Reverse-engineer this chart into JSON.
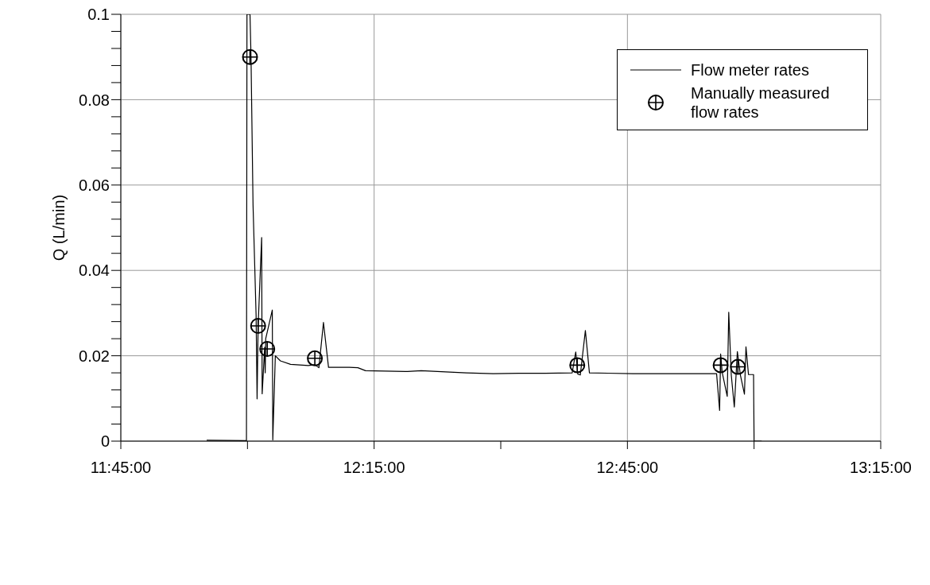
{
  "chart_data": {
    "type": "line",
    "ylabel": "Q (L/min)",
    "xlim": [
      11.75,
      13.25
    ],
    "xticks": [
      {
        "value": 11.75,
        "label": "11:45:00"
      },
      {
        "value": 12.0,
        "label": null
      },
      {
        "value": 12.25,
        "label": "12:15:00"
      },
      {
        "value": 12.5,
        "label": null
      },
      {
        "value": 12.75,
        "label": "12:45:00"
      },
      {
        "value": 13.0,
        "label": null
      },
      {
        "value": 13.25,
        "label": "13:15:00"
      }
    ],
    "ylim": [
      0,
      0.1
    ],
    "yticks": [
      0,
      {
        "value": 0.004,
        "label": null
      },
      {
        "value": 0.008,
        "label": null
      },
      {
        "value": 0.012,
        "label": null
      },
      {
        "value": 0.016,
        "label": null
      },
      0.02,
      {
        "value": 0.024,
        "label": null
      },
      {
        "value": 0.028,
        "label": null
      },
      {
        "value": 0.032,
        "label": null
      },
      {
        "value": 0.036,
        "label": null
      },
      0.04,
      {
        "value": 0.044,
        "label": null
      },
      {
        "value": 0.048,
        "label": null
      },
      {
        "value": 0.052,
        "label": null
      },
      {
        "value": 0.056,
        "label": null
      },
      0.06,
      {
        "value": 0.064,
        "label": null
      },
      {
        "value": 0.068,
        "label": null
      },
      {
        "value": 0.072,
        "label": null
      },
      {
        "value": 0.076,
        "label": null
      },
      0.08,
      {
        "value": 0.084,
        "label": null
      },
      {
        "value": 0.088,
        "label": null
      },
      {
        "value": 0.092,
        "label": null
      },
      {
        "value": 0.096,
        "label": null
      },
      0.1
    ],
    "grid": true,
    "legend": "top right",
    "series": [
      {
        "name": "Flow meter rates",
        "color": "#000000",
        "line_style": "solid",
        "marker": "none",
        "x": [
          11.9195,
          11.998,
          11.999,
          12.005,
          12.007,
          12.011,
          12.017,
          12.019,
          12.021,
          12.028,
          12.029,
          12.034,
          12.035,
          12.036,
          12.049,
          12.05,
          12.055,
          12.065,
          12.085,
          12.12,
          12.133,
          12.141,
          12.15,
          12.16,
          12.201,
          12.218,
          12.233,
          12.316,
          12.343,
          12.375,
          12.432,
          12.485,
          12.536,
          12.588,
          12.641,
          12.648,
          12.652,
          12.657,
          12.667,
          12.675,
          12.761,
          12.861,
          12.926,
          12.932,
          12.934,
          12.937,
          12.947,
          12.95,
          12.955,
          12.961,
          12.967,
          12.973,
          12.981,
          12.984,
          12.989,
          12.999,
          13.0,
          13.015
        ],
        "values": [
          0.0002,
          0.0001,
          0.1,
          0.1,
          0.09,
          0.0553,
          0.0296,
          0.0099,
          0.0268,
          0.0477,
          0.0111,
          0.022,
          0.016,
          0.024,
          0.0307,
          0.0003,
          0.02,
          0.0188,
          0.018,
          0.0177,
          0.0179,
          0.0172,
          0.0278,
          0.0173,
          0.0173,
          0.0172,
          0.0165,
          0.0163,
          0.0165,
          0.0163,
          0.016,
          0.0158,
          0.0159,
          0.0159,
          0.016,
          0.0209,
          0.0157,
          0.0155,
          0.0259,
          0.016,
          0.0158,
          0.0158,
          0.0158,
          0.0072,
          0.0204,
          0.0162,
          0.0105,
          0.0302,
          0.0155,
          0.008,
          0.021,
          0.0155,
          0.011,
          0.0221,
          0.0156,
          0.0156,
          0,
          0
        ]
      },
      {
        "name": "Manually measured flow rates",
        "type": "scatter",
        "color": "#000000",
        "marker": "circle",
        "x": [
          12.005,
          12.021,
          12.039,
          12.133,
          12.651,
          12.934,
          12.968
        ],
        "values": [
          0.09,
          0.027,
          0.0216,
          0.0194,
          0.0178,
          0.0178,
          0.0174
        ]
      }
    ]
  }
}
